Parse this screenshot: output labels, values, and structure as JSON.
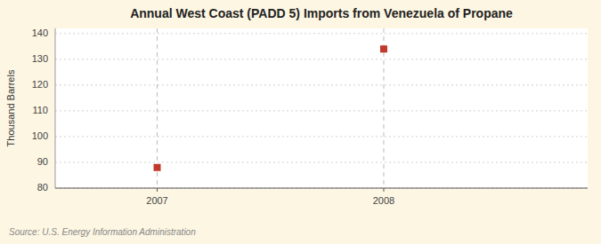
{
  "chart_data": {
    "type": "scatter",
    "title": "Annual West Coast (PADD 5) Imports from Venezuela of Propane",
    "ylabel": "Thousand Barrels",
    "annotation": "Source: U.S. Energy Information Administration",
    "x": [
      2007,
      2008
    ],
    "values": [
      88,
      134
    ],
    "color": "#c0392b",
    "marker": "square",
    "xlim": [
      2006.55,
      2008.9
    ],
    "xticks": [
      2007,
      2008
    ],
    "ylim": [
      80,
      142
    ],
    "yticks": [
      80,
      90,
      100,
      110,
      120,
      130,
      140
    ],
    "grid": true
  }
}
